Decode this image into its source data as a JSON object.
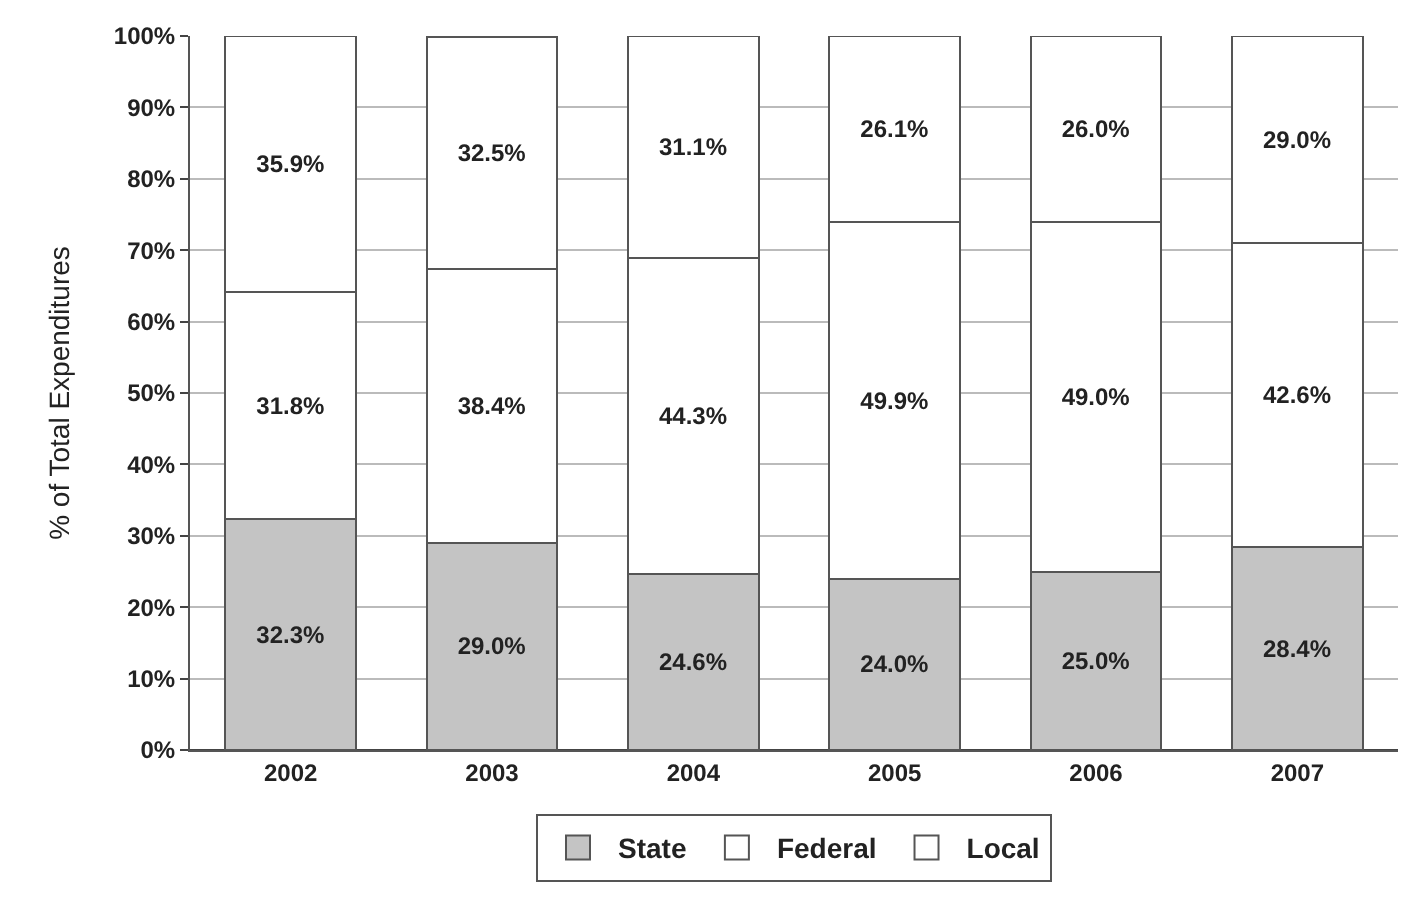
{
  "chart_data": {
    "type": "bar",
    "stacked": true,
    "ylabel": "% of Total Expenditures",
    "categories": [
      "2002",
      "2003",
      "2004",
      "2005",
      "2006",
      "2007"
    ],
    "series": [
      {
        "name": "State",
        "color": "#c4c4c4",
        "values": [
          32.3,
          29.0,
          24.6,
          24.0,
          25.0,
          28.4
        ],
        "value_labels": [
          "32.3%",
          "29.0%",
          "24.6%",
          "24.0%",
          "25.0%",
          "28.4%"
        ]
      },
      {
        "name": "Federal",
        "color": "#ffffff",
        "values": [
          31.8,
          38.4,
          44.3,
          49.9,
          49.0,
          42.6
        ],
        "value_labels": [
          "31.8%",
          "38.4%",
          "44.3%",
          "49.9%",
          "49.0%",
          "42.6%"
        ]
      },
      {
        "name": "Local",
        "color": "#ffffff",
        "values": [
          35.9,
          32.5,
          31.1,
          26.1,
          26.0,
          29.0
        ],
        "value_labels": [
          "35.9%",
          "32.5%",
          "31.1%",
          "26.1%",
          "26.0%",
          "29.0%"
        ]
      }
    ],
    "ylim": [
      0,
      100
    ],
    "yticks": [
      {
        "value": 0,
        "label": "0%"
      },
      {
        "value": 10,
        "label": "10%"
      },
      {
        "value": 20,
        "label": "20%"
      },
      {
        "value": 30,
        "label": "30%"
      },
      {
        "value": 40,
        "label": "40%"
      },
      {
        "value": 50,
        "label": "50%"
      },
      {
        "value": 60,
        "label": "60%"
      },
      {
        "value": 70,
        "label": "70%"
      },
      {
        "value": 80,
        "label": "80%"
      },
      {
        "value": 90,
        "label": "90%"
      },
      {
        "value": 100,
        "label": "100%"
      }
    ],
    "grid": "y",
    "legend": "bottom"
  }
}
